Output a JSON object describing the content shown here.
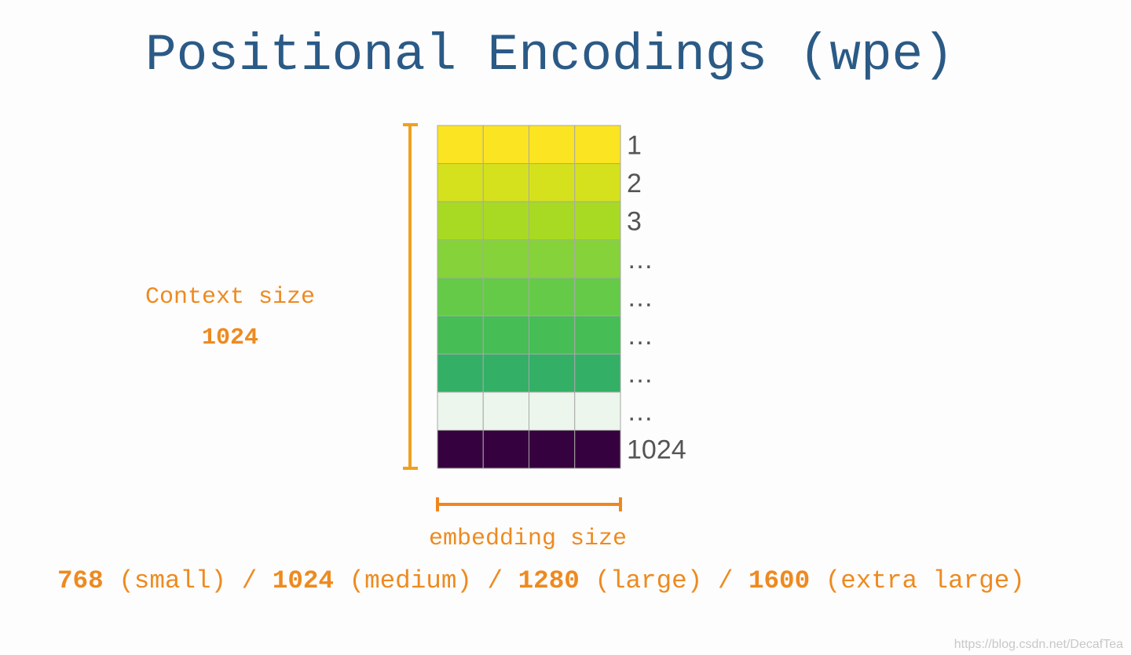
{
  "title": "Positional Encodings (wpe)",
  "rows": [
    {
      "label": "1",
      "color": "#fbe422"
    },
    {
      "label": "2",
      "color": "#d5e11c"
    },
    {
      "label": "3",
      "color": "#a8da24"
    },
    {
      "label": "…",
      "color": "#86d23a"
    },
    {
      "label": "…",
      "color": "#65ca48"
    },
    {
      "label": "…",
      "color": "#46bd55"
    },
    {
      "label": "…",
      "color": "#33b066"
    },
    {
      "label": "…",
      "color": "#ecf6ec"
    },
    {
      "label": "1024",
      "color": "#36013f"
    }
  ],
  "columns": 4,
  "context": {
    "label": "Context size",
    "value": "1024"
  },
  "embedding": {
    "label": "embedding size",
    "separator": "/",
    "options": [
      {
        "size": "768",
        "name": "(small)"
      },
      {
        "size": "1024",
        "name": "(medium)"
      },
      {
        "size": "1280",
        "name": "(large)"
      },
      {
        "size": "1600",
        "name": "(extra large)"
      }
    ]
  },
  "watermark": "https://blog.csdn.net/DecafTea"
}
